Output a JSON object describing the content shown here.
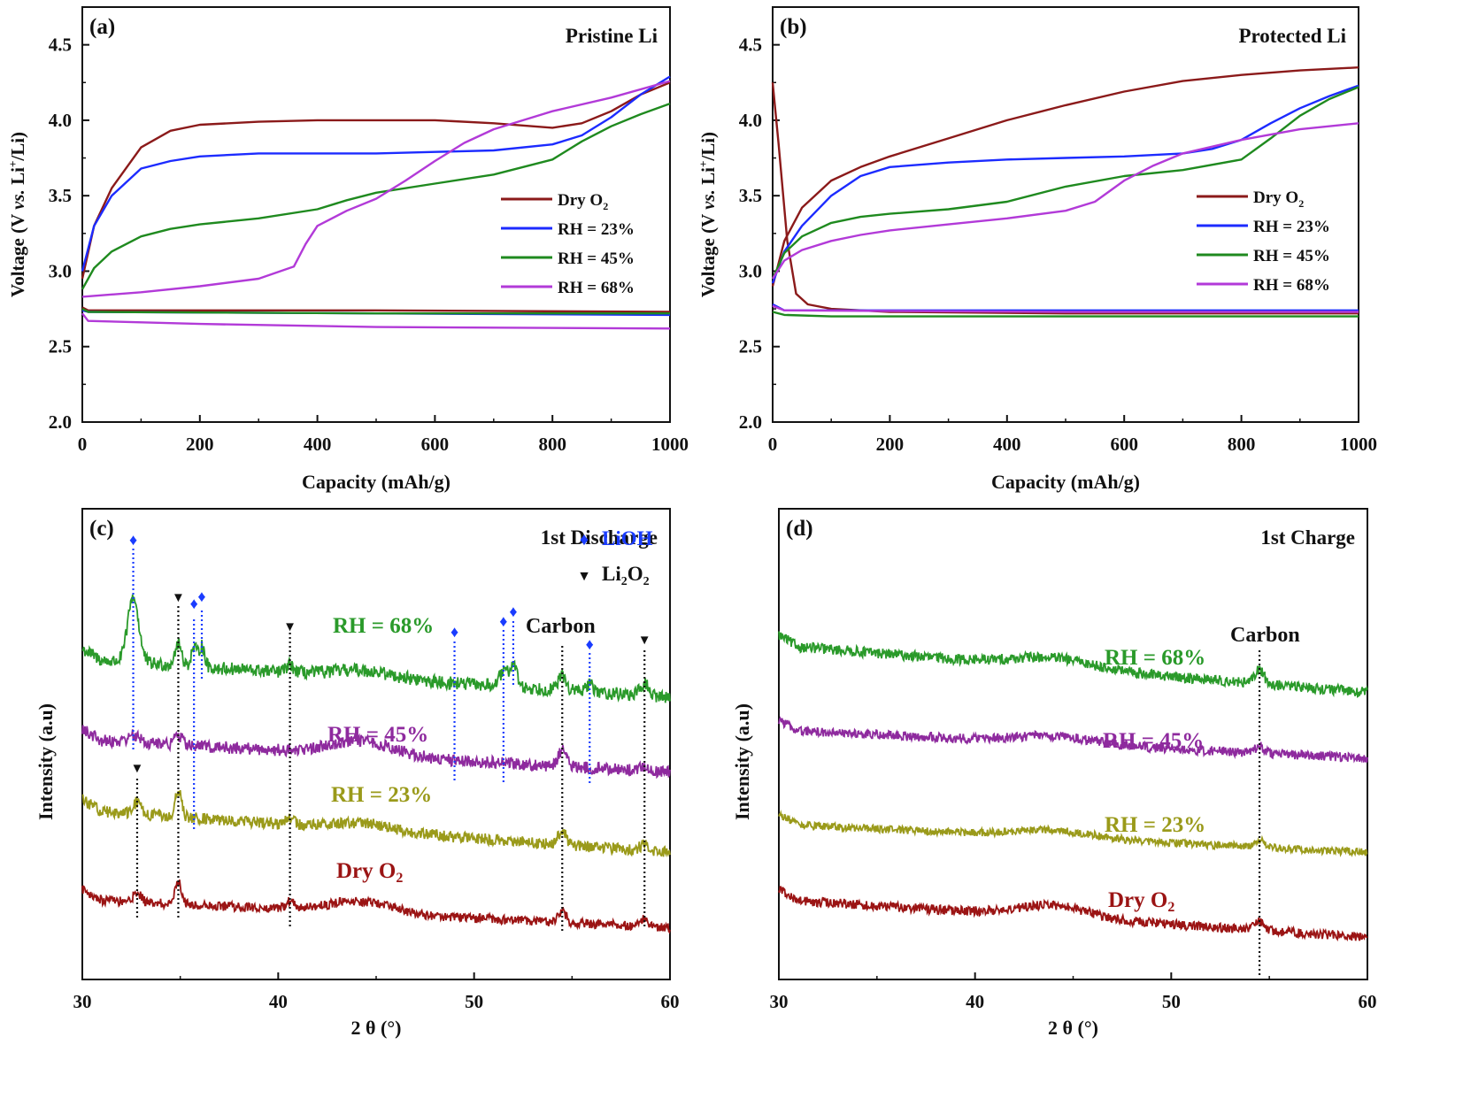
{
  "colors": {
    "dry": "#8b1a1a",
    "rh23": "#1c2bff",
    "rh45": "#1f8a1f",
    "rh68": "#b23ad8",
    "xrd68": "#2a9a2a",
    "xrd45": "#8e2a9e",
    "xrd23": "#9a9a1a",
    "xrdDry": "#9b1414",
    "lioh": "#1a3cff",
    "li2o2": "#111111"
  },
  "chart_data": [
    {
      "panel": "a",
      "type": "line",
      "panel_label": "(a)",
      "title": "Pristine Li",
      "xlabel": "Capacity (mAh/g)",
      "ylabel_parts": [
        "Voltage (V ",
        "vs.",
        " Li",
        "+",
        "/Li)"
      ],
      "xlim": [
        0,
        1000
      ],
      "ylim": [
        2.0,
        4.75
      ],
      "xticks": [
        0,
        200,
        400,
        600,
        800,
        1000
      ],
      "yticks": [
        2.0,
        2.5,
        3.0,
        3.5,
        4.0,
        4.5
      ],
      "legend": {
        "placement": "right",
        "entries": [
          {
            "label": "Dry O",
            "sub": "2",
            "colorKey": "dry"
          },
          {
            "label": "RH = 23%",
            "colorKey": "rh23"
          },
          {
            "label": "RH = 45%",
            "colorKey": "rh45"
          },
          {
            "label": "RH = 68%",
            "colorKey": "rh68"
          }
        ]
      },
      "series": [
        {
          "name": "Dry O2",
          "segment": "discharge",
          "colorKey": "dry",
          "x": [
            0,
            10,
            500,
            1000
          ],
          "y": [
            2.76,
            2.74,
            2.74,
            2.73
          ]
        },
        {
          "name": "Dry O2",
          "segment": "charge",
          "colorKey": "dry",
          "x": [
            0,
            20,
            50,
            100,
            150,
            200,
            300,
            400,
            500,
            600,
            700,
            800,
            850,
            900,
            950,
            1000
          ],
          "y": [
            2.95,
            3.3,
            3.55,
            3.82,
            3.93,
            3.97,
            3.99,
            4.0,
            4.0,
            4.0,
            3.98,
            3.95,
            3.98,
            4.06,
            4.17,
            4.25
          ]
        },
        {
          "name": "RH = 23%",
          "segment": "discharge",
          "colorKey": "rh23",
          "x": [
            0,
            10,
            500,
            1000
          ],
          "y": [
            2.74,
            2.73,
            2.72,
            2.71
          ]
        },
        {
          "name": "RH = 23%",
          "segment": "charge",
          "colorKey": "rh23",
          "x": [
            0,
            20,
            50,
            100,
            150,
            200,
            300,
            400,
            500,
            600,
            700,
            800,
            850,
            900,
            950,
            1000
          ],
          "y": [
            3.0,
            3.3,
            3.5,
            3.68,
            3.73,
            3.76,
            3.78,
            3.78,
            3.78,
            3.79,
            3.8,
            3.84,
            3.9,
            4.02,
            4.17,
            4.29
          ]
        },
        {
          "name": "RH = 45%",
          "segment": "discharge",
          "colorKey": "rh45",
          "x": [
            0,
            10,
            500,
            1000
          ],
          "y": [
            2.75,
            2.73,
            2.72,
            2.72
          ]
        },
        {
          "name": "RH = 45%",
          "segment": "charge",
          "colorKey": "rh45",
          "x": [
            0,
            20,
            50,
            100,
            150,
            200,
            300,
            400,
            450,
            500,
            600,
            700,
            800,
            850,
            900,
            950,
            1000
          ],
          "y": [
            2.88,
            3.02,
            3.13,
            3.23,
            3.28,
            3.31,
            3.35,
            3.41,
            3.47,
            3.52,
            3.58,
            3.64,
            3.74,
            3.86,
            3.96,
            4.04,
            4.11
          ]
        },
        {
          "name": "RH = 68%",
          "segment": "discharge",
          "colorKey": "rh68",
          "x": [
            0,
            10,
            200,
            500,
            1000
          ],
          "y": [
            2.72,
            2.67,
            2.65,
            2.63,
            2.62
          ]
        },
        {
          "name": "RH = 68%",
          "segment": "charge",
          "colorKey": "rh68",
          "x": [
            0,
            100,
            200,
            300,
            360,
            380,
            400,
            450,
            500,
            550,
            600,
            650,
            700,
            750,
            800,
            900,
            1000
          ],
          "y": [
            2.83,
            2.86,
            2.9,
            2.95,
            3.03,
            3.18,
            3.3,
            3.4,
            3.48,
            3.6,
            3.73,
            3.85,
            3.94,
            4.0,
            4.06,
            4.15,
            4.26
          ]
        }
      ]
    },
    {
      "panel": "b",
      "type": "line",
      "panel_label": "(b)",
      "title": "Protected Li",
      "xlabel": "Capacity (mAh/g)",
      "ylabel_parts": [
        "Voltage (V ",
        "vs.",
        " Li",
        "+",
        "/Li)"
      ],
      "xlim": [
        0,
        1000
      ],
      "ylim": [
        2.0,
        4.75
      ],
      "xticks": [
        0,
        200,
        400,
        600,
        800,
        1000
      ],
      "yticks": [
        2.0,
        2.5,
        3.0,
        3.5,
        4.0,
        4.5
      ],
      "legend": {
        "placement": "right",
        "entries": [
          {
            "label": "Dry O",
            "sub": "2",
            "colorKey": "dry"
          },
          {
            "label": "RH = 23%",
            "colorKey": "rh23"
          },
          {
            "label": "RH = 45%",
            "colorKey": "rh45"
          },
          {
            "label": "RH = 68%",
            "colorKey": "rh68"
          }
        ]
      },
      "series": [
        {
          "name": "Dry O2",
          "segment": "discharge",
          "colorKey": "dry",
          "x": [
            0,
            10,
            25,
            40,
            60,
            100,
            200,
            500,
            1000
          ],
          "y": [
            4.25,
            3.85,
            3.2,
            2.85,
            2.78,
            2.75,
            2.73,
            2.72,
            2.72
          ]
        },
        {
          "name": "Dry O2",
          "segment": "charge",
          "colorKey": "dry",
          "x": [
            0,
            20,
            50,
            100,
            150,
            200,
            300,
            400,
            500,
            600,
            700,
            800,
            900,
            1000
          ],
          "y": [
            2.9,
            3.2,
            3.42,
            3.6,
            3.69,
            3.76,
            3.88,
            4.0,
            4.1,
            4.19,
            4.26,
            4.3,
            4.33,
            4.35
          ]
        },
        {
          "name": "RH = 23%",
          "segment": "discharge",
          "colorKey": "rh23",
          "x": [
            0,
            20,
            500,
            1000
          ],
          "y": [
            2.78,
            2.74,
            2.74,
            2.74
          ]
        },
        {
          "name": "RH = 23%",
          "segment": "charge",
          "colorKey": "rh23",
          "x": [
            0,
            20,
            50,
            100,
            150,
            200,
            300,
            400,
            500,
            600,
            700,
            750,
            800,
            850,
            900,
            950,
            1000
          ],
          "y": [
            2.92,
            3.13,
            3.3,
            3.5,
            3.63,
            3.69,
            3.72,
            3.74,
            3.75,
            3.76,
            3.78,
            3.81,
            3.87,
            3.98,
            4.08,
            4.16,
            4.23
          ]
        },
        {
          "name": "RH = 45%",
          "segment": "discharge",
          "colorKey": "rh45",
          "x": [
            0,
            20,
            100,
            500,
            1000
          ],
          "y": [
            2.73,
            2.71,
            2.7,
            2.7,
            2.7
          ]
        },
        {
          "name": "RH = 45%",
          "segment": "charge",
          "colorKey": "rh45",
          "x": [
            0,
            20,
            50,
            100,
            150,
            200,
            300,
            400,
            500,
            600,
            700,
            800,
            850,
            900,
            950,
            1000
          ],
          "y": [
            2.95,
            3.12,
            3.23,
            3.32,
            3.36,
            3.38,
            3.41,
            3.46,
            3.56,
            3.63,
            3.67,
            3.74,
            3.88,
            4.03,
            4.14,
            4.22
          ]
        },
        {
          "name": "RH = 68%",
          "segment": "discharge",
          "colorKey": "rh68",
          "x": [
            0,
            20,
            500,
            1000
          ],
          "y": [
            2.77,
            2.74,
            2.73,
            2.73
          ]
        },
        {
          "name": "RH = 68%",
          "segment": "charge",
          "colorKey": "rh68",
          "x": [
            0,
            20,
            50,
            100,
            150,
            200,
            300,
            400,
            500,
            550,
            600,
            650,
            700,
            800,
            900,
            1000
          ],
          "y": [
            2.95,
            3.07,
            3.14,
            3.2,
            3.24,
            3.27,
            3.31,
            3.35,
            3.4,
            3.46,
            3.6,
            3.7,
            3.78,
            3.87,
            3.94,
            3.98
          ]
        }
      ]
    },
    {
      "panel": "c",
      "type": "line",
      "panel_label": "(c)",
      "title": "1st Discharge",
      "xlabel": "2 θ (°)",
      "ylabel": "Intensity (a.u)",
      "xlim": [
        30,
        60
      ],
      "ylim": [
        0,
        100
      ],
      "xticks": [
        30,
        40,
        50,
        60
      ],
      "legend_items": [
        {
          "symbol": "♦",
          "label": "LiOH",
          "colorKey": "lioh"
        },
        {
          "symbol": "▼",
          "label": "Li",
          "sub": "2",
          "label2": "O",
          "sub2": "2",
          "colorKey": "li2o2"
        }
      ],
      "annotation": "Carbon",
      "series": [
        {
          "name": "RH = 68%",
          "colorKey": "xrd68",
          "baseline": [
            68,
            60
          ],
          "noise": 1.4,
          "peaks": [
            [
              32.6,
              14,
              0.28
            ],
            [
              34.9,
              4.5,
              0.18
            ],
            [
              35.7,
              4,
              0.14
            ],
            [
              36.1,
              4.5,
              0.14
            ],
            [
              40.6,
              1.5,
              0.2
            ],
            [
              44.3,
              1.5,
              1.5
            ],
            [
              51.5,
              3,
              0.2
            ],
            [
              52.0,
              5,
              0.18
            ],
            [
              54.5,
              3,
              0.2
            ],
            [
              55.9,
              1.5,
              0.2
            ],
            [
              58.7,
              2.5,
              0.2
            ]
          ]
        },
        {
          "name": "RH = 45%",
          "colorKey": "xrd45",
          "baseline": [
            51,
            44
          ],
          "noise": 1.3,
          "peaks": [
            [
              32.6,
              1.5,
              0.3
            ],
            [
              34.9,
              2,
              0.2
            ],
            [
              44.2,
              3,
              1.6
            ],
            [
              54.5,
              3.5,
              0.2
            ],
            [
              58.7,
              1,
              0.2
            ]
          ]
        },
        {
          "name": "RH = 23%",
          "colorKey": "xrd23",
          "baseline": [
            36,
            27
          ],
          "noise": 1.2,
          "peaks": [
            [
              32.8,
              2.5,
              0.2
            ],
            [
              34.9,
              5.5,
              0.16
            ],
            [
              40.6,
              1.5,
              0.2
            ],
            [
              44.3,
              1.5,
              1.5
            ],
            [
              54.5,
              3,
              0.2
            ],
            [
              58.7,
              1.5,
              0.2
            ]
          ]
        },
        {
          "name": "Dry O2",
          "colorKey": "xrdDry",
          "baseline": [
            17,
            11
          ],
          "noise": 1.0,
          "peaks": [
            [
              32.8,
              2,
              0.2
            ],
            [
              34.9,
              5,
              0.16
            ],
            [
              40.6,
              1.5,
              0.2
            ],
            [
              44.2,
              2.5,
              1.6
            ],
            [
              54.5,
              2.5,
              0.2
            ],
            [
              58.7,
              1.5,
              0.2
            ]
          ]
        }
      ],
      "series_labels": [
        {
          "text": "RH = 68%",
          "colorKey": "xrd68"
        },
        {
          "text": "RH = 45%",
          "colorKey": "xrd45"
        },
        {
          "text": "RH = 23%",
          "colorKey": "xrd23"
        },
        {
          "text": "Dry O",
          "sub": "2",
          "colorKey": "xrdDry"
        }
      ],
      "markers": {
        "lioh": [
          32.6,
          35.7,
          36.1,
          49.0,
          51.5,
          52.0,
          55.9
        ],
        "li2o2": [
          34.9,
          40.6,
          58.7,
          32.8
        ]
      },
      "dotted_lines_2theta": {
        "lioh": [
          32.6,
          35.7,
          36.1,
          49.0,
          51.5,
          52.0,
          55.9
        ],
        "li2o2": [
          32.8,
          34.9,
          40.6,
          54.5,
          58.7
        ]
      }
    },
    {
      "panel": "d",
      "type": "line",
      "panel_label": "(d)",
      "title": "1st Charge",
      "xlabel": "2 θ (°)",
      "ylabel": "Intensity (a.u)",
      "xlim": [
        30,
        60
      ],
      "ylim": [
        0,
        100
      ],
      "xticks": [
        30,
        40,
        50,
        60
      ],
      "annotation": "Carbon",
      "series": [
        {
          "name": "RH = 68%",
          "colorKey": "xrd68",
          "baseline": [
            71,
            61
          ],
          "noise": 1.1,
          "peaks": [
            [
              44.0,
              2,
              2.0
            ],
            [
              54.5,
              3,
              0.22
            ]
          ]
        },
        {
          "name": "RH = 45%",
          "colorKey": "xrd45",
          "baseline": [
            53,
            47
          ],
          "noise": 1.0,
          "peaks": [
            [
              44.0,
              1.5,
              2.0
            ],
            [
              54.5,
              1.5,
              0.22
            ]
          ]
        },
        {
          "name": "RH = 23%",
          "colorKey": "xrd23",
          "baseline": [
            33,
            27
          ],
          "noise": 0.8,
          "peaks": [
            [
              44.0,
              1.5,
              2.0
            ],
            [
              54.5,
              1.5,
              0.22
            ]
          ]
        },
        {
          "name": "Dry O2",
          "colorKey": "xrdDry",
          "baseline": [
            17,
            9
          ],
          "noise": 1.0,
          "peaks": [
            [
              44.0,
              2.5,
              1.8
            ],
            [
              54.5,
              2,
              0.22
            ]
          ]
        }
      ],
      "series_labels": [
        {
          "text": "RH = 68%",
          "colorKey": "xrd68"
        },
        {
          "text": "RH = 45%",
          "colorKey": "xrd45"
        },
        {
          "text": "RH = 23%",
          "colorKey": "xrd23"
        },
        {
          "text": "Dry O",
          "sub": "2",
          "colorKey": "xrdDry"
        }
      ],
      "dotted_lines_2theta": {
        "carbon": [
          54.5
        ]
      }
    }
  ]
}
